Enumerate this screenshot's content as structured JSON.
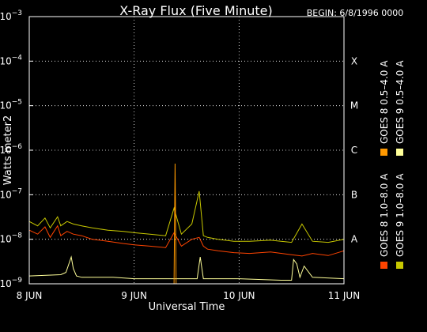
{
  "chart_data": {
    "type": "line",
    "title": "X-Ray Flux (Five Minute)",
    "begin_label": "BEGIN: 6/8/1996 0000",
    "xlabel": "Universal Time",
    "ylabel": "Watts meter2",
    "y_scale": "log",
    "ylim": [
      1e-09,
      0.001
    ],
    "y_ticks": [
      {
        "base": "10",
        "exp": "−9"
      },
      {
        "base": "10",
        "exp": "−8"
      },
      {
        "base": "10",
        "exp": "−7"
      },
      {
        "base": "10",
        "exp": "−6"
      },
      {
        "base": "10",
        "exp": "−5"
      },
      {
        "base": "10",
        "exp": "−4"
      },
      {
        "base": "10",
        "exp": "−3"
      }
    ],
    "xlim": [
      "8 JUN",
      "11 JUN"
    ],
    "x_ticks": [
      "8 JUN",
      "9 JUN",
      "10 JUN",
      "11 JUN"
    ],
    "flare_classes": [
      "A",
      "B",
      "C",
      "M",
      "X"
    ],
    "grid": true,
    "legend_placement": "right (vertical)",
    "series": [
      {
        "name": "GOES 8 1.0–8.0 A",
        "color": "#ff4400",
        "x": [
          8.0,
          8.08,
          8.15,
          8.2,
          8.27,
          8.3,
          8.36,
          8.42,
          8.5,
          8.6,
          8.75,
          8.9,
          9.0,
          9.15,
          9.3,
          9.38,
          9.45,
          9.55,
          9.62,
          9.66,
          9.7,
          9.8,
          9.95,
          10.1,
          10.3,
          10.5,
          10.6,
          10.7,
          10.85,
          11.0
        ],
        "y": [
          1.6e-08,
          1.3e-08,
          1.9e-08,
          1.1e-08,
          2e-08,
          1.2e-08,
          1.5e-08,
          1.3e-08,
          1.2e-08,
          1e-08,
          9e-09,
          8e-09,
          7.5e-09,
          7e-09,
          6.5e-09,
          1.4e-08,
          7e-09,
          1e-08,
          1.1e-08,
          7e-09,
          6e-09,
          5.5e-09,
          5e-09,
          4.8e-09,
          5.2e-09,
          4.5e-09,
          4.2e-09,
          4.8e-09,
          4.3e-09,
          5.5e-09
        ]
      },
      {
        "name": "GOES 8 0.5–4.0 A",
        "color": "#ff9900",
        "x": [
          8.0,
          9.38,
          9.39,
          9.4,
          9.41,
          10.0,
          11.0
        ],
        "y": [
          null,
          1e-09,
          5e-07,
          1e-09,
          null,
          null,
          null
        ]
      },
      {
        "name": "GOES 9 1.0–8.0 A",
        "color": "#c8c800",
        "x": [
          8.0,
          8.08,
          8.15,
          8.2,
          8.27,
          8.3,
          8.36,
          8.42,
          8.5,
          8.6,
          8.75,
          8.9,
          9.0,
          9.15,
          9.3,
          9.38,
          9.45,
          9.55,
          9.62,
          9.66,
          9.7,
          9.8,
          9.95,
          10.1,
          10.3,
          10.5,
          10.6,
          10.7,
          10.85,
          11.0
        ],
        "y": [
          2.5e-08,
          2e-08,
          3e-08,
          1.8e-08,
          3.2e-08,
          2e-08,
          2.5e-08,
          2.2e-08,
          2e-08,
          1.8e-08,
          1.6e-08,
          1.5e-08,
          1.4e-08,
          1.3e-08,
          1.2e-08,
          5e-08,
          1.3e-08,
          2.2e-08,
          1.2e-07,
          1.2e-08,
          1.1e-08,
          1e-08,
          9e-09,
          9e-09,
          9.5e-09,
          8.5e-09,
          2.2e-08,
          9e-09,
          8.5e-09,
          1e-08
        ]
      },
      {
        "name": "GOES 9 0.5–4.0 A",
        "color": "#ffff99",
        "x": [
          8.0,
          8.3,
          8.35,
          8.4,
          8.42,
          8.45,
          8.5,
          8.8,
          9.0,
          9.3,
          9.6,
          9.63,
          9.66,
          10.0,
          10.4,
          10.5,
          10.52,
          10.55,
          10.58,
          10.62,
          10.7,
          11.0
        ],
        "y": [
          1.5e-09,
          1.6e-09,
          1.8e-09,
          4e-09,
          2.2e-09,
          1.5e-09,
          1.4e-09,
          1.4e-09,
          1.3e-09,
          1.3e-09,
          1.3e-09,
          4e-09,
          1.3e-09,
          1.3e-09,
          1.2e-09,
          1.2e-09,
          3.5e-09,
          2.8e-09,
          1.4e-09,
          2.5e-09,
          1.4e-09,
          1.3e-09
        ]
      }
    ]
  }
}
